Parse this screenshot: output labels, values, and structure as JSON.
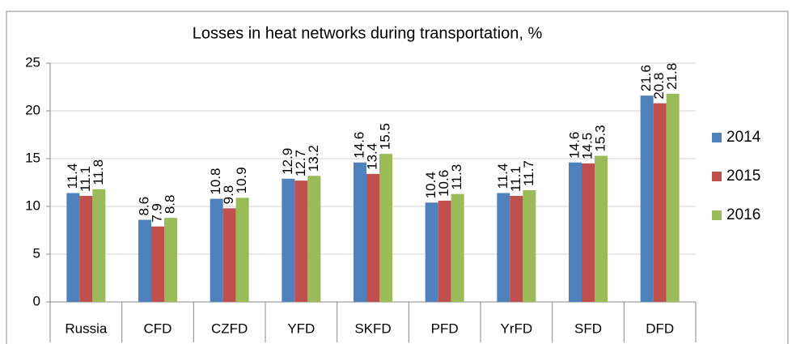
{
  "chart_data": {
    "type": "bar",
    "title": "Losses in heat networks during transportation, %",
    "categories": [
      "Russia",
      "CFD",
      "CZFD",
      "YFD",
      "SKFD",
      "PFD",
      "YrFD",
      "SFD",
      "DFD"
    ],
    "series": [
      {
        "name": "2014",
        "color": "#4f81bd",
        "values": [
          11.4,
          8.6,
          10.8,
          12.9,
          14.6,
          10.4,
          11.4,
          14.6,
          21.6
        ]
      },
      {
        "name": "2015",
        "color": "#c0504d",
        "values": [
          11.1,
          7.9,
          9.8,
          12.7,
          13.4,
          10.6,
          11.1,
          14.5,
          20.8
        ]
      },
      {
        "name": "2016",
        "color": "#9bbb59",
        "values": [
          11.8,
          8.8,
          10.9,
          13.2,
          15.5,
          11.3,
          11.7,
          15.3,
          21.8
        ]
      }
    ],
    "ylim": [
      0,
      25
    ],
    "yticks": [
      0,
      5,
      10,
      15,
      20,
      25
    ],
    "grid": true,
    "legend": "right"
  }
}
